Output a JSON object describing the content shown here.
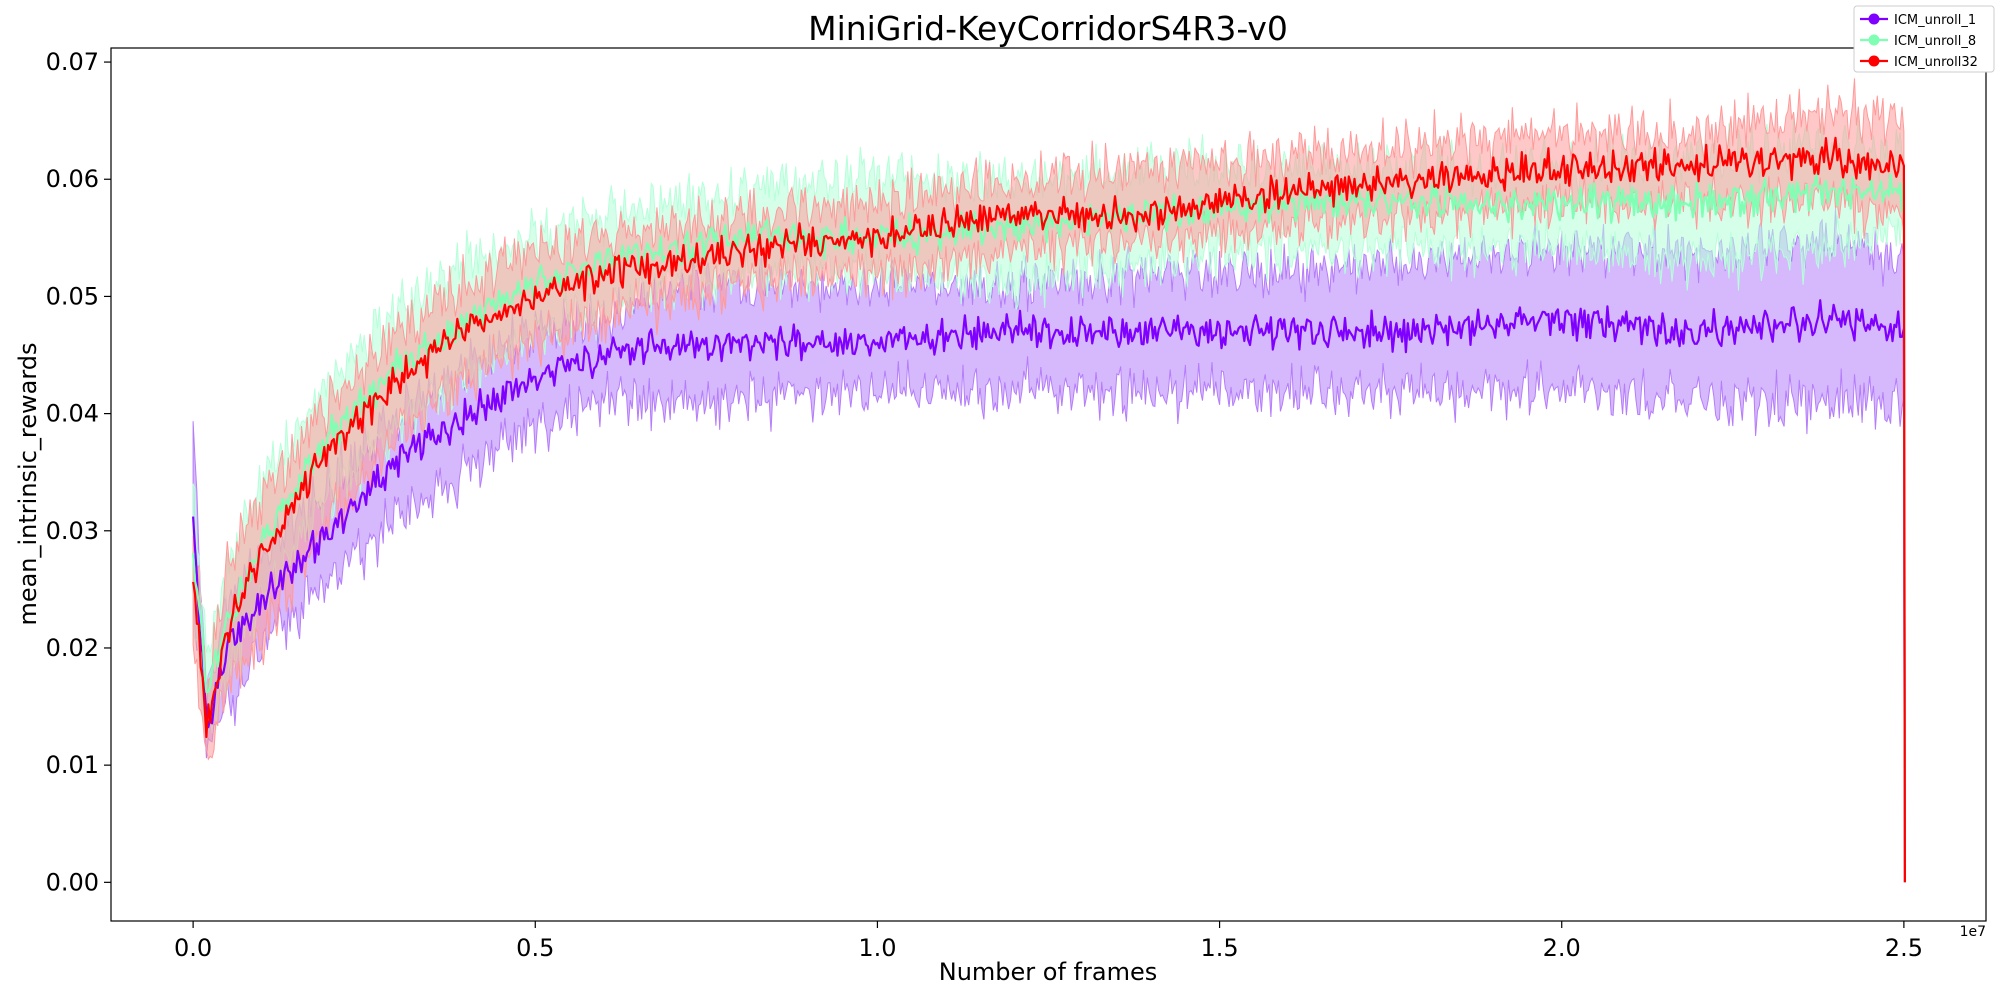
{
  "chart_data": {
    "type": "line",
    "title": "MiniGrid-KeyCorridorS4R3-v0",
    "xlabel": "Number of frames",
    "ylabel": "mean_intrinsic_rewards",
    "x_offset_label": "1e7",
    "xlim": [
      -0.12,
      2.62
    ],
    "ylim": [
      -0.0033,
      0.0712
    ],
    "x_ticks": [
      0.0,
      0.5,
      1.0,
      1.5,
      2.0,
      2.5
    ],
    "x_tick_labels": [
      "0.0",
      "0.5",
      "1.0",
      "1.5",
      "2.0",
      "2.5"
    ],
    "y_ticks": [
      0.0,
      0.01,
      0.02,
      0.03,
      0.04,
      0.05,
      0.06,
      0.07
    ],
    "y_tick_labels": [
      "0.00",
      "0.01",
      "0.02",
      "0.03",
      "0.04",
      "0.05",
      "0.06",
      "0.07"
    ],
    "grid": false,
    "legend_position": "top-right",
    "series": [
      {
        "name": "ICM_unroll_1",
        "color": "#7f00ff",
        "band_color": "#b57dfa",
        "x": [
          0.0,
          0.02,
          0.05,
          0.1,
          0.2,
          0.3,
          0.4,
          0.5,
          0.6,
          0.7,
          0.8,
          1.0,
          1.2,
          1.4,
          1.6,
          1.8,
          2.0,
          2.2,
          2.4,
          2.5
        ],
        "y": [
          0.031,
          0.013,
          0.02,
          0.024,
          0.03,
          0.036,
          0.04,
          0.043,
          0.045,
          0.046,
          0.046,
          0.046,
          0.047,
          0.047,
          0.047,
          0.047,
          0.048,
          0.047,
          0.048,
          0.047
        ],
        "band_low": [
          0.025,
          0.011,
          0.015,
          0.02,
          0.026,
          0.031,
          0.035,
          0.039,
          0.041,
          0.041,
          0.041,
          0.042,
          0.042,
          0.042,
          0.042,
          0.042,
          0.042,
          0.041,
          0.041,
          0.041
        ],
        "band_high": [
          0.038,
          0.016,
          0.024,
          0.028,
          0.034,
          0.04,
          0.044,
          0.047,
          0.048,
          0.051,
          0.051,
          0.051,
          0.051,
          0.052,
          0.052,
          0.053,
          0.054,
          0.054,
          0.055,
          0.053
        ]
      },
      {
        "name": "ICM_unroll_8",
        "color": "#80ffb4",
        "band_color": "#b5ffd9",
        "x": [
          0.0,
          0.02,
          0.05,
          0.1,
          0.2,
          0.3,
          0.4,
          0.5,
          0.6,
          0.7,
          0.8,
          1.0,
          1.2,
          1.4,
          1.6,
          1.8,
          2.0,
          2.2,
          2.4,
          2.5
        ],
        "y": [
          0.029,
          0.016,
          0.022,
          0.029,
          0.038,
          0.044,
          0.048,
          0.051,
          0.053,
          0.054,
          0.055,
          0.055,
          0.056,
          0.057,
          0.058,
          0.058,
          0.058,
          0.058,
          0.059,
          0.059
        ],
        "band_low": [
          0.022,
          0.013,
          0.018,
          0.024,
          0.033,
          0.039,
          0.043,
          0.047,
          0.049,
          0.051,
          0.052,
          0.052,
          0.051,
          0.053,
          0.054,
          0.054,
          0.054,
          0.053,
          0.054,
          0.056
        ],
        "band_high": [
          0.034,
          0.02,
          0.027,
          0.034,
          0.043,
          0.049,
          0.053,
          0.055,
          0.057,
          0.058,
          0.059,
          0.06,
          0.06,
          0.061,
          0.061,
          0.061,
          0.061,
          0.062,
          0.063,
          0.062
        ]
      },
      {
        "name": "ICM_unroll32",
        "color": "#ff0000",
        "band_color": "#ff9a9a",
        "x": [
          0.0,
          0.02,
          0.05,
          0.1,
          0.2,
          0.3,
          0.4,
          0.5,
          0.6,
          0.7,
          0.8,
          1.0,
          1.2,
          1.4,
          1.6,
          1.8,
          2.0,
          2.2,
          2.4,
          2.5
        ],
        "y": [
          0.026,
          0.013,
          0.022,
          0.028,
          0.037,
          0.043,
          0.047,
          0.05,
          0.052,
          0.053,
          0.054,
          0.055,
          0.057,
          0.057,
          0.059,
          0.06,
          0.061,
          0.061,
          0.062,
          0.061
        ],
        "band_low": [
          0.02,
          0.011,
          0.017,
          0.021,
          0.031,
          0.038,
          0.043,
          0.046,
          0.048,
          0.05,
          0.051,
          0.052,
          0.054,
          0.055,
          0.056,
          0.057,
          0.058,
          0.058,
          0.058,
          0.057
        ],
        "band_high": [
          0.031,
          0.016,
          0.027,
          0.033,
          0.041,
          0.047,
          0.051,
          0.054,
          0.055,
          0.056,
          0.057,
          0.058,
          0.06,
          0.061,
          0.062,
          0.063,
          0.064,
          0.064,
          0.066,
          0.065
        ]
      }
    ]
  }
}
